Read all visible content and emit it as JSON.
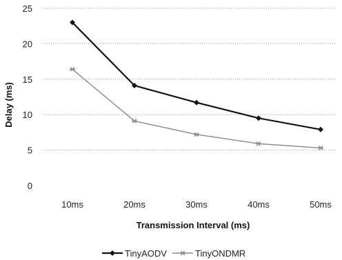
{
  "chart_data": {
    "type": "line",
    "categories": [
      "10ms",
      "20ms",
      "30ms",
      "40ms",
      "50ms"
    ],
    "xlabel": "Transmission Interval (ms)",
    "ylabel": "Delay (ms)",
    "ylim": [
      0,
      25
    ],
    "yticks": [
      0,
      5,
      10,
      15,
      20,
      25
    ],
    "grid": true,
    "legend_position": "bottom",
    "series": [
      {
        "name": "TinyAODV",
        "values": [
          23,
          14.1,
          11.7,
          9.5,
          7.9
        ],
        "color": "#111111",
        "marker": "diamond"
      },
      {
        "name": "TinyONDMR",
        "values": [
          16.4,
          9.1,
          7.2,
          5.9,
          5.3
        ],
        "color": "#8a8a8a",
        "marker": "star"
      }
    ]
  }
}
